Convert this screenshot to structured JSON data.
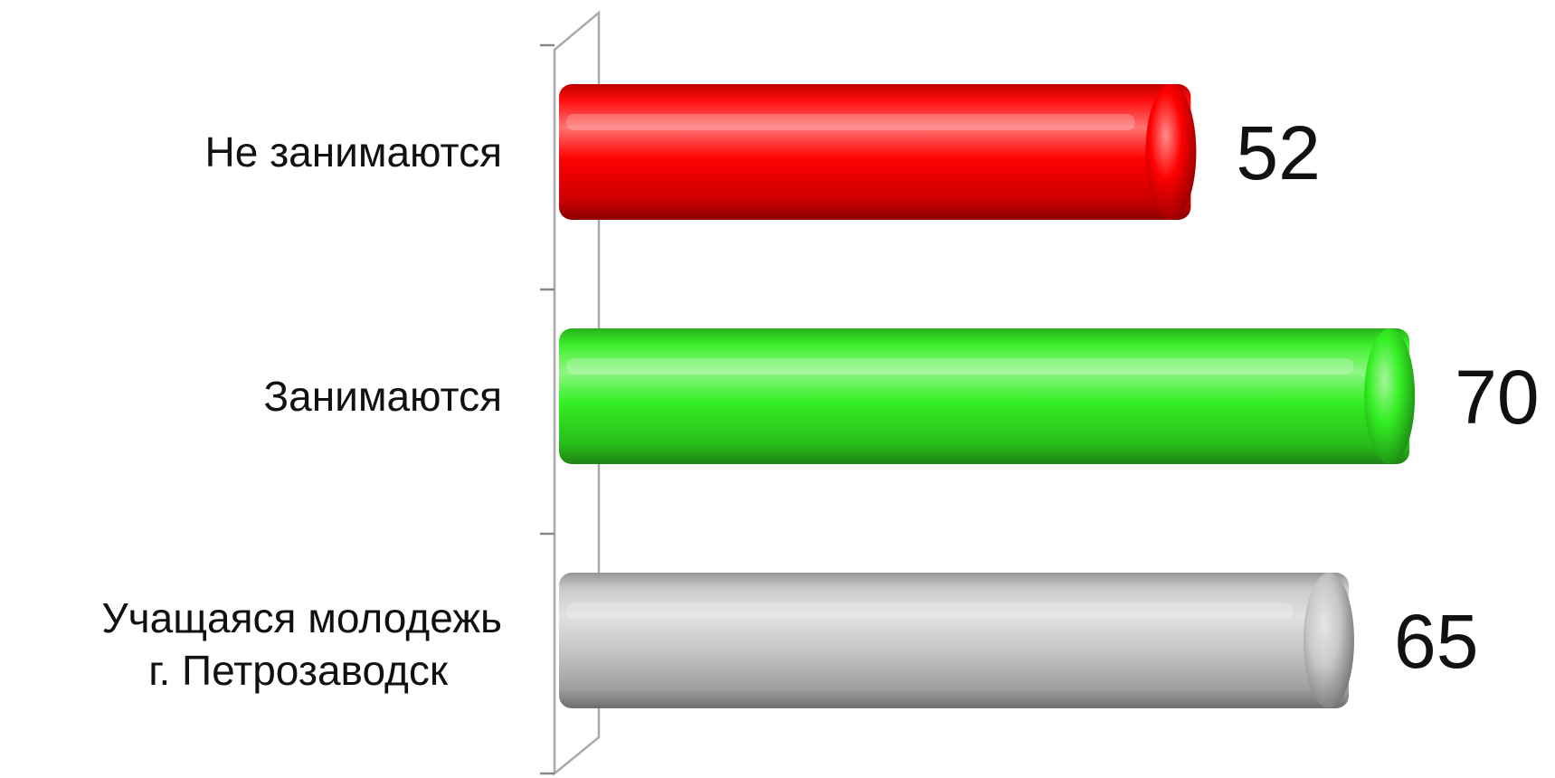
{
  "chart_data": {
    "type": "bar",
    "orientation": "horizontal",
    "style": "3d-cylinder",
    "categories": [
      [
        "Не занимаются"
      ],
      [
        "Занимаются"
      ],
      [
        "Учащаяся молодежь",
        "г. Петрозаводск"
      ]
    ],
    "values": [
      52,
      70,
      65
    ],
    "value_labels": [
      "52",
      "70",
      "65"
    ],
    "colors": [
      "#ff0000",
      "#33ee22",
      "#c8c8c8"
    ],
    "xlim": [
      0,
      72
    ],
    "grid": false,
    "legend": "none",
    "title": "",
    "xlabel": "",
    "ylabel": ""
  }
}
